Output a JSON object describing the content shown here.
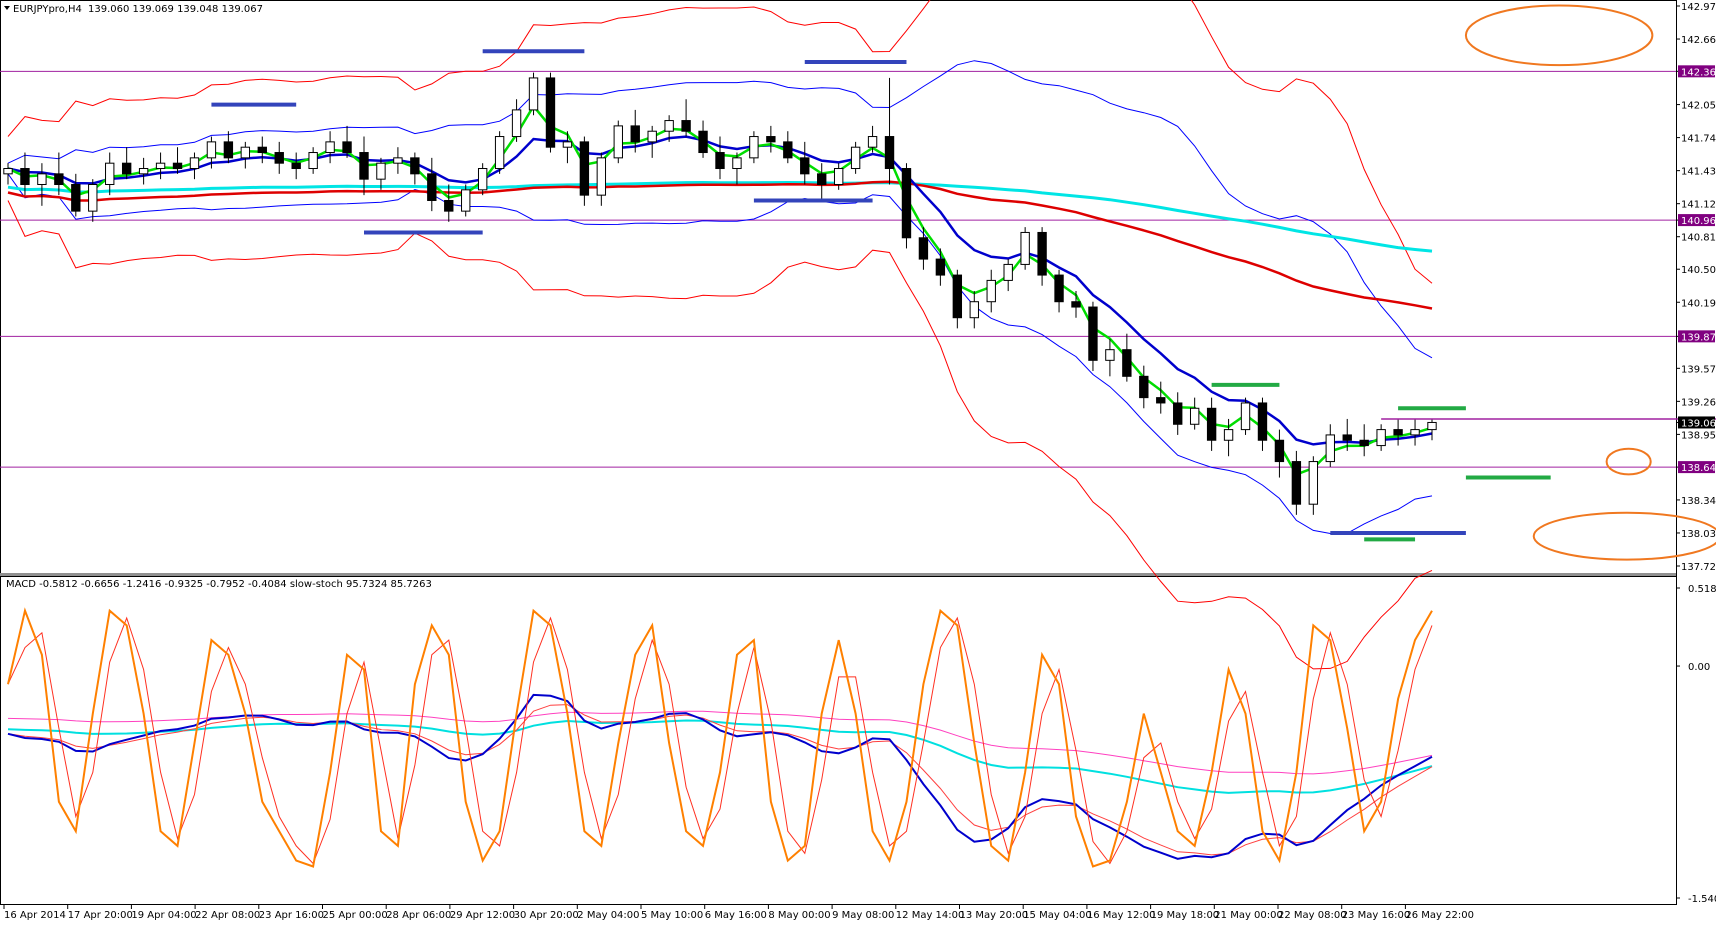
{
  "window": {
    "title": "EURJPYpro,H4",
    "ohlc": "139.060 139.069 139.048 139.067",
    "indicator_line": "MACD -0.5812 -0.6656 -1.2416 -0.9325 -0.7952 -0.4084  slow-stoch 95.7324 85.7263"
  },
  "colors": {
    "background": "#ffffff",
    "grid": "#000000",
    "candle": "#000000",
    "level_line": "#a020a0",
    "level_box": "#800080",
    "price_box": "#000000",
    "bb_outer": "#ff0000",
    "bb_inner": "#0000ff",
    "ema_fast": "#00dd00",
    "ema_mid": "#0000cc",
    "ma_red": "#dd0000",
    "ma_cyan": "#00e5e5",
    "marker_blue": "#3344bb",
    "marker_green": "#22aa44",
    "ellipse": "#f07820",
    "macd_main": "#0000cc",
    "macd_signal": "#ff4040",
    "macd_slow": "#00e0e0",
    "macd_slow2": "#ff40c0",
    "stoch_main": "#ff8000",
    "stoch_signal": "#ff3020"
  },
  "chart_data": [
    {
      "type": "candlestick",
      "symbol": "EURJPYpro",
      "timeframe": "H4",
      "ylim": [
        137.72,
        142.975
      ],
      "y_ticks": [
        142.975,
        142.665,
        142.362,
        142.05,
        141.74,
        141.43,
        141.12,
        140.966,
        140.81,
        140.505,
        140.195,
        139.875,
        139.575,
        139.265,
        139.067,
        138.955,
        138.648,
        138.34,
        138.03,
        137.72
      ],
      "y_tick_labels": [
        "142.975",
        "142.665",
        "142.362",
        "142.050",
        "141.740",
        "141.430",
        "141.120",
        "140.966",
        "140.810",
        "140.505",
        "140.195",
        "139.875",
        "139.575",
        "139.265",
        "139.067",
        "138.955",
        "138.648",
        "138.340",
        "138.030",
        "137.720"
      ],
      "level_lines": [
        142.362,
        140.966,
        139.875,
        138.648
      ],
      "level_labels": [
        "142.362",
        "140.966",
        "139.875",
        "138.648"
      ],
      "current_price": 139.067,
      "current_price_label": "139.067",
      "ohlc": [
        [
          141.4,
          141.5,
          141.3,
          141.45
        ],
        [
          141.45,
          141.6,
          141.2,
          141.3
        ],
        [
          141.3,
          141.5,
          141.1,
          141.4
        ],
        [
          141.4,
          141.6,
          141.2,
          141.3
        ],
        [
          141.3,
          141.4,
          141.0,
          141.05
        ],
        [
          141.05,
          141.35,
          140.95,
          141.3
        ],
        [
          141.3,
          141.6,
          141.2,
          141.5
        ],
        [
          141.5,
          141.65,
          141.35,
          141.4
        ],
        [
          141.4,
          141.55,
          141.3,
          141.45
        ],
        [
          141.45,
          141.6,
          141.35,
          141.5
        ],
        [
          141.5,
          141.65,
          141.4,
          141.45
        ],
        [
          141.45,
          141.6,
          141.35,
          141.55
        ],
        [
          141.55,
          141.75,
          141.45,
          141.7
        ],
        [
          141.7,
          141.8,
          141.5,
          141.55
        ],
        [
          141.55,
          141.7,
          141.45,
          141.65
        ],
        [
          141.65,
          141.75,
          141.5,
          141.6
        ],
        [
          141.6,
          141.7,
          141.4,
          141.5
        ],
        [
          141.5,
          141.6,
          141.35,
          141.45
        ],
        [
          141.45,
          141.65,
          141.4,
          141.6
        ],
        [
          141.6,
          141.8,
          141.5,
          141.7
        ],
        [
          141.7,
          141.85,
          141.55,
          141.6
        ],
        [
          141.6,
          141.75,
          141.2,
          141.35
        ],
        [
          141.35,
          141.55,
          141.25,
          141.5
        ],
        [
          141.5,
          141.65,
          141.4,
          141.55
        ],
        [
          141.55,
          141.6,
          141.3,
          141.4
        ],
        [
          141.4,
          141.55,
          141.05,
          141.15
        ],
        [
          141.15,
          141.3,
          140.95,
          141.05
        ],
        [
          141.05,
          141.3,
          141.0,
          141.25
        ],
        [
          141.25,
          141.5,
          141.2,
          141.45
        ],
        [
          141.45,
          141.8,
          141.4,
          141.75
        ],
        [
          141.75,
          142.1,
          141.7,
          142.0
        ],
        [
          142.0,
          142.35,
          141.95,
          142.3
        ],
        [
          142.3,
          142.35,
          141.6,
          141.65
        ],
        [
          141.65,
          141.8,
          141.5,
          141.7
        ],
        [
          141.7,
          141.75,
          141.1,
          141.2
        ],
        [
          141.2,
          141.6,
          141.1,
          141.55
        ],
        [
          141.55,
          141.9,
          141.5,
          141.85
        ],
        [
          141.85,
          142.0,
          141.6,
          141.7
        ],
        [
          141.7,
          141.85,
          141.55,
          141.8
        ],
        [
          141.8,
          141.95,
          141.7,
          141.9
        ],
        [
          141.9,
          142.1,
          141.75,
          141.8
        ],
        [
          141.8,
          141.9,
          141.55,
          141.6
        ],
        [
          141.6,
          141.75,
          141.35,
          141.45
        ],
        [
          141.45,
          141.6,
          141.3,
          141.55
        ],
        [
          141.55,
          141.8,
          141.5,
          141.75
        ],
        [
          141.75,
          141.85,
          141.6,
          141.7
        ],
        [
          141.7,
          141.8,
          141.5,
          141.55
        ],
        [
          141.55,
          141.7,
          141.3,
          141.4
        ],
        [
          141.4,
          141.5,
          141.15,
          141.3
        ],
        [
          141.3,
          141.5,
          141.25,
          141.45
        ],
        [
          141.45,
          141.7,
          141.4,
          141.65
        ],
        [
          141.65,
          141.85,
          141.6,
          141.75
        ],
        [
          141.75,
          142.3,
          141.3,
          141.45
        ],
        [
          141.45,
          141.5,
          140.7,
          140.8
        ],
        [
          140.8,
          140.9,
          140.5,
          140.6
        ],
        [
          140.6,
          140.7,
          140.35,
          140.45
        ],
        [
          140.45,
          140.5,
          139.95,
          140.05
        ],
        [
          140.05,
          140.3,
          139.95,
          140.2
        ],
        [
          140.2,
          140.5,
          140.1,
          140.4
        ],
        [
          140.4,
          140.6,
          140.3,
          140.55
        ],
        [
          140.55,
          140.9,
          140.5,
          140.85
        ],
        [
          140.85,
          140.9,
          140.35,
          140.45
        ],
        [
          140.45,
          140.5,
          140.1,
          140.2
        ],
        [
          140.2,
          140.3,
          140.05,
          140.15
        ],
        [
          140.15,
          140.2,
          139.55,
          139.65
        ],
        [
          139.65,
          139.85,
          139.5,
          139.75
        ],
        [
          139.75,
          139.9,
          139.45,
          139.5
        ],
        [
          139.5,
          139.6,
          139.2,
          139.3
        ],
        [
          139.3,
          139.45,
          139.15,
          139.25
        ],
        [
          139.25,
          139.35,
          138.95,
          139.05
        ],
        [
          139.05,
          139.3,
          139.0,
          139.2
        ],
        [
          139.2,
          139.3,
          138.8,
          138.9
        ],
        [
          138.9,
          139.1,
          138.75,
          139.0
        ],
        [
          139.0,
          139.3,
          138.95,
          139.25
        ],
        [
          139.25,
          139.3,
          138.8,
          138.9
        ],
        [
          138.9,
          139.0,
          138.55,
          138.7
        ],
        [
          138.7,
          138.8,
          138.2,
          138.3
        ],
        [
          138.3,
          138.75,
          138.2,
          138.7
        ],
        [
          138.7,
          139.05,
          138.65,
          138.95
        ],
        [
          138.95,
          139.1,
          138.8,
          138.9
        ],
        [
          138.9,
          139.05,
          138.75,
          138.85
        ],
        [
          138.85,
          139.05,
          138.8,
          139.0
        ],
        [
          139.0,
          139.1,
          138.85,
          138.95
        ],
        [
          138.95,
          139.1,
          138.85,
          139.0
        ],
        [
          139.0,
          139.1,
          138.9,
          139.067
        ]
      ],
      "x_labels": [
        "16 Apr 2014",
        "17 Apr 20:00",
        "19 Apr 04:00",
        "22 Apr 08:00",
        "23 Apr 16:00",
        "25 Apr 00:00",
        "28 Apr 06:00",
        "29 Apr 12:00",
        "30 Apr 20:00",
        "2 May 04:00",
        "5 May 10:00",
        "6 May 16:00",
        "8 May 00:00",
        "9 May 08:00",
        "12 May 14:00",
        "13 May 20:00",
        "15 May 04:00",
        "16 May 12:00",
        "19 May 18:00",
        "21 May 00:00",
        "22 May 08:00",
        "23 May 16:00",
        "26 May 22:00"
      ]
    },
    {
      "type": "line",
      "name": "MACD / slow-stoch",
      "y_ticks": [
        0.5182,
        0.0,
        -1.5402
      ],
      "y_tick_labels": [
        "0.5182",
        "0.00",
        "-1.5402"
      ],
      "ylim": [
        -1.5402,
        0.5182
      ],
      "stoch": [
        70,
        95,
        80,
        30,
        20,
        60,
        95,
        90,
        60,
        20,
        15,
        50,
        85,
        80,
        60,
        30,
        20,
        10,
        8,
        40,
        80,
        75,
        20,
        15,
        70,
        90,
        80,
        30,
        10,
        20,
        60,
        95,
        90,
        60,
        20,
        15,
        50,
        80,
        90,
        50,
        20,
        15,
        40,
        80,
        85,
        30,
        10,
        15,
        60,
        85,
        60,
        20,
        10,
        30,
        70,
        95,
        90,
        50,
        15,
        10,
        40,
        80,
        70,
        25,
        8,
        10,
        30,
        60,
        40,
        20,
        15,
        40,
        75,
        60,
        20,
        10,
        40,
        90,
        85,
        55,
        20,
        30,
        65,
        85,
        95
      ]
    }
  ]
}
